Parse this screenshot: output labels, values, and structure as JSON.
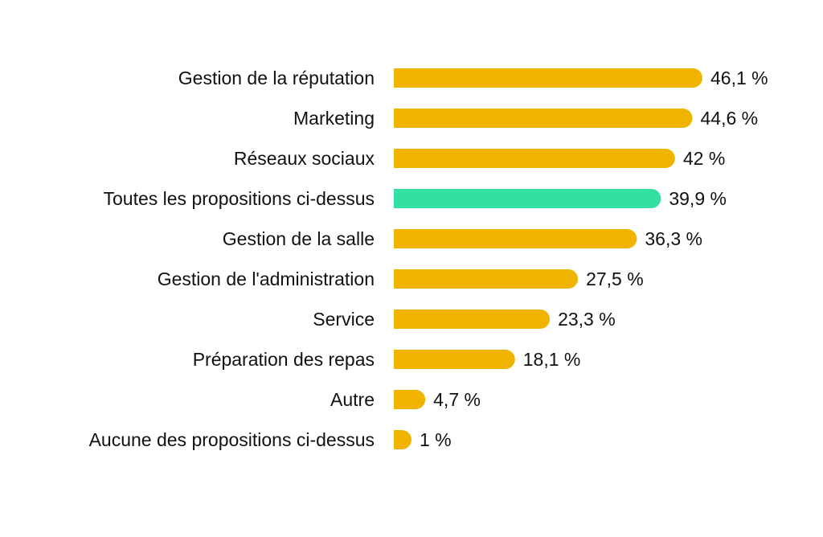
{
  "chart_data": {
    "type": "bar",
    "orientation": "horizontal",
    "categories": [
      "Gestion de la réputation",
      "Marketing",
      "Réseaux sociaux",
      "Toutes les propositions ci-dessus",
      "Gestion de la salle",
      "Gestion de l'administration",
      "Service",
      "Préparation des repas",
      "Autre",
      "Aucune des propositions ci-dessus"
    ],
    "values": [
      46.1,
      44.6,
      42,
      39.9,
      36.3,
      27.5,
      23.3,
      18.1,
      4.7,
      1
    ],
    "value_labels": [
      "46,1 %",
      "44,6 %",
      "42 %",
      "39,9 %",
      "36,3 %",
      "27,5 %",
      "23,3 %",
      "18,1 %",
      "4,7 %",
      "1 %"
    ],
    "bar_colors": [
      "#F0B400",
      "#F0B400",
      "#F0B400",
      "#33E0A1",
      "#F0B400",
      "#F0B400",
      "#F0B400",
      "#F0B400",
      "#F0B400",
      "#F0B400"
    ],
    "highlight_color": "#33E0A1",
    "default_color": "#F0B400",
    "grid": false,
    "legend": "none"
  }
}
